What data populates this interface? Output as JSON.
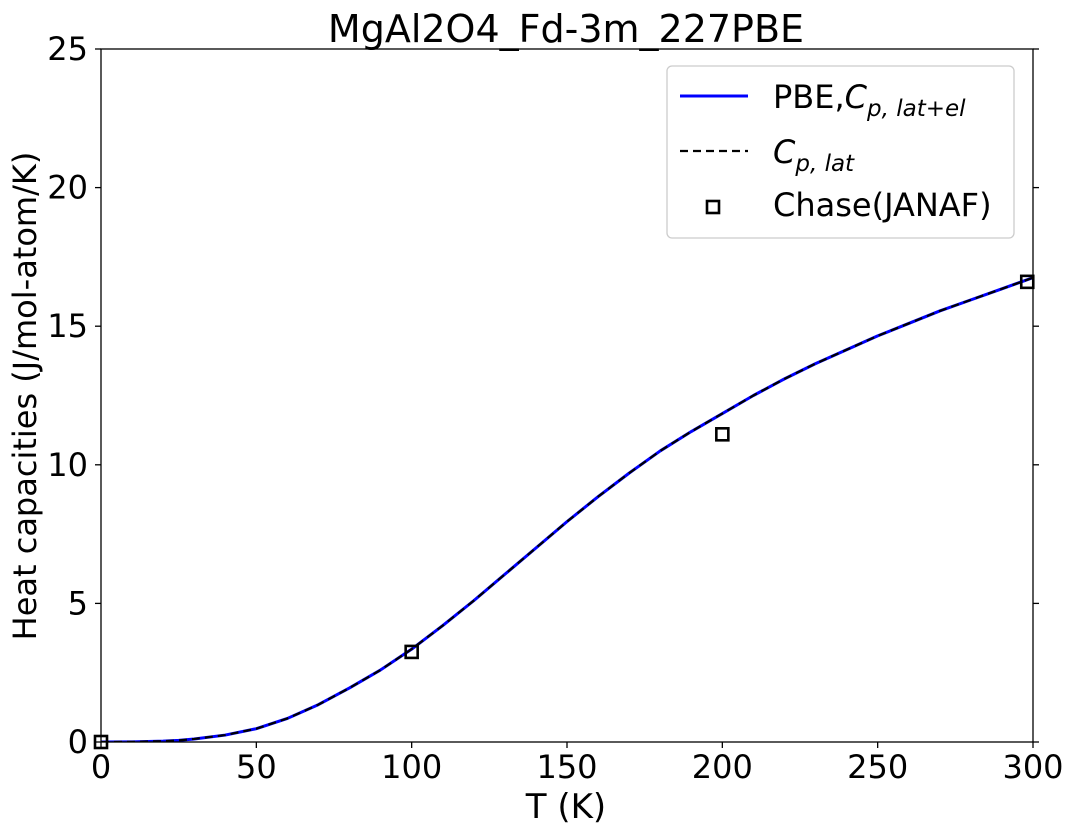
{
  "chart_data": {
    "type": "line",
    "title": "MgAl2O4_Fd-3m_227PBE",
    "xlabel": "T (K)",
    "ylabel": "Heat capacities (J/mol-atom/K)",
    "xlim": [
      0,
      300
    ],
    "ylim": [
      0,
      25
    ],
    "xticks": [
      0,
      50,
      100,
      150,
      200,
      250,
      300
    ],
    "yticks": [
      0,
      5,
      10,
      15,
      20,
      25
    ],
    "grid": false,
    "legend_position": "top-right",
    "series": [
      {
        "name": "PBE,Cp,lat+el",
        "legend_text": "PBE,",
        "legend_symbol": "C",
        "legend_subscript": "p, lat+el",
        "style": "solid",
        "color": "#0000ff",
        "x": [
          0,
          10,
          20,
          25,
          30,
          40,
          50,
          60,
          70,
          80,
          90,
          100,
          110,
          120,
          130,
          140,
          150,
          160,
          170,
          180,
          190,
          200,
          210,
          220,
          230,
          240,
          250,
          260,
          270,
          280,
          290,
          300
        ],
        "y": [
          0,
          0.005,
          0.03,
          0.06,
          0.11,
          0.25,
          0.48,
          0.85,
          1.35,
          1.95,
          2.6,
          3.35,
          4.2,
          5.1,
          6.05,
          7.0,
          7.95,
          8.85,
          9.7,
          10.5,
          11.2,
          11.85,
          12.5,
          13.1,
          13.65,
          14.15,
          14.65,
          15.1,
          15.55,
          15.95,
          16.35,
          16.75
        ]
      },
      {
        "name": "Cp,lat",
        "legend_text": "",
        "legend_symbol": "C",
        "legend_subscript": "p, lat",
        "style": "dashed",
        "color": "#000000",
        "x": [
          0,
          10,
          20,
          25,
          30,
          40,
          50,
          60,
          70,
          80,
          90,
          100,
          110,
          120,
          130,
          140,
          150,
          160,
          170,
          180,
          190,
          200,
          210,
          220,
          230,
          240,
          250,
          260,
          270,
          280,
          290,
          300
        ],
        "y": [
          0,
          0.005,
          0.03,
          0.06,
          0.11,
          0.25,
          0.48,
          0.85,
          1.35,
          1.95,
          2.6,
          3.35,
          4.2,
          5.1,
          6.05,
          7.0,
          7.95,
          8.85,
          9.7,
          10.5,
          11.2,
          11.85,
          12.5,
          13.1,
          13.65,
          14.15,
          14.65,
          15.1,
          15.55,
          15.95,
          16.35,
          16.75
        ]
      },
      {
        "name": "Chase(JANAF)",
        "legend_text": "Chase(JANAF)",
        "style": "markers",
        "marker": "square",
        "color": "#000000",
        "x": [
          0,
          100,
          200,
          298.15
        ],
        "y": [
          0,
          3.25,
          11.1,
          16.6
        ]
      }
    ]
  }
}
